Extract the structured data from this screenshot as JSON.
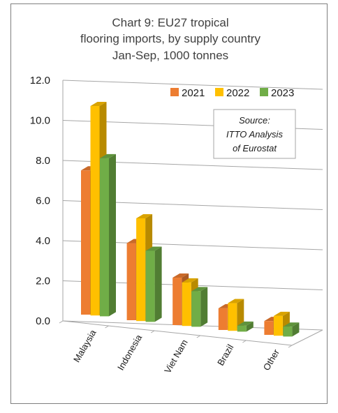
{
  "chart_data": {
    "type": "bar",
    "title_lines": [
      "Chart 9: EU27 tropical",
      "flooring imports, by supply country",
      "Jan-Sep, 1000 tonnes"
    ],
    "categories": [
      "Malaysia",
      "Indonesia",
      "Viet Nam",
      "Brazil",
      "Other"
    ],
    "series": [
      {
        "name": "2021",
        "color": "#ED7D31",
        "values": [
          7.3,
          3.9,
          2.4,
          1.1,
          0.7
        ]
      },
      {
        "name": "2022",
        "color": "#FFC000",
        "values": [
          10.6,
          5.2,
          2.2,
          1.4,
          1.0
        ]
      },
      {
        "name": "2023",
        "color": "#70AD47",
        "values": [
          8.0,
          3.6,
          1.8,
          0.3,
          0.5
        ]
      }
    ],
    "ylim": [
      0,
      12
    ],
    "yticks": [
      "0.0",
      "2.0",
      "4.0",
      "6.0",
      "8.0",
      "10.0",
      "12.0"
    ],
    "grid": true,
    "legend_position": "top-right",
    "annotation_lines": [
      "Source:",
      "ITTO Analysis",
      "of Eurostat"
    ]
  }
}
